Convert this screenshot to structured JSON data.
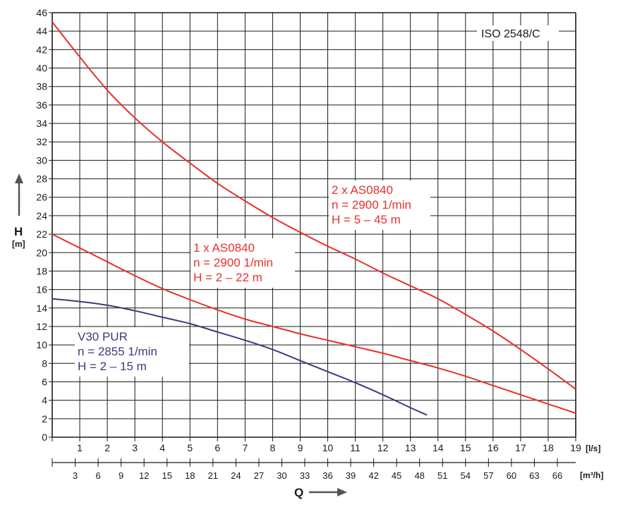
{
  "chart_data": {
    "type": "line",
    "standard_label": "ISO 2548/C",
    "y_axis": {
      "label": "H",
      "unit": "[m]",
      "ticks": [
        "0",
        "2",
        "4",
        "6",
        "8",
        "10",
        "12",
        "14",
        "16",
        "18",
        "20",
        "22",
        "24",
        "26",
        "28",
        "30",
        "32",
        "34",
        "36",
        "38",
        "40",
        "42",
        "44",
        "46"
      ],
      "ylim": [
        0,
        46
      ]
    },
    "x_axis_primary": {
      "label": "Q",
      "unit": "[l/s]",
      "ticks": [
        "1",
        "2",
        "3",
        "4",
        "5",
        "6",
        "7",
        "8",
        "9",
        "10",
        "11",
        "12",
        "13",
        "14",
        "15",
        "16",
        "17",
        "18",
        "19"
      ],
      "xlim": [
        0,
        19
      ]
    },
    "x_axis_secondary": {
      "unit": "[m³/h]",
      "ticks": [
        "3",
        "6",
        "9",
        "12",
        "15",
        "18",
        "21",
        "24",
        "27",
        "30",
        "33",
        "36",
        "39",
        "42",
        "45",
        "48",
        "51",
        "54",
        "57",
        "60",
        "63",
        "66"
      ]
    },
    "grid": true,
    "series": [
      {
        "name": "2 x AS0840",
        "color": "#e8302c",
        "annotation": [
          "2 x AS0840",
          "n = 2900 1/min",
          "H = 5 – 45 m"
        ],
        "x": [
          0,
          1,
          2,
          3,
          4,
          5,
          6,
          7,
          8,
          9,
          10,
          11,
          12,
          13,
          14,
          15,
          16,
          17,
          18,
          19
        ],
        "y": [
          45,
          41.2,
          37.6,
          34.6,
          32,
          29.7,
          27.5,
          25.6,
          23.8,
          22.2,
          20.7,
          19.3,
          17.8,
          16.4,
          15,
          13.3,
          11.5,
          9.5,
          7.4,
          5.2
        ]
      },
      {
        "name": "1 x AS0840",
        "color": "#e8302c",
        "annotation": [
          "1 x AS0840",
          "n = 2900 1/min",
          "H = 2 – 22 m"
        ],
        "x": [
          0,
          1,
          2,
          3,
          4,
          5,
          6,
          7,
          8,
          9,
          10,
          11,
          12,
          13,
          14,
          15,
          16,
          17,
          18,
          19
        ],
        "y": [
          22,
          20.5,
          19,
          17.5,
          16.1,
          14.9,
          13.8,
          12.8,
          12,
          11.2,
          10.5,
          9.8,
          9.1,
          8.3,
          7.5,
          6.6,
          5.6,
          4.6,
          3.6,
          2.6
        ]
      },
      {
        "name": "V30 PUR",
        "color": "#3f3a7a",
        "annotation": [
          "V30 PUR",
          "n = 2855 1/min",
          "H = 2 – 15 m"
        ],
        "x": [
          0,
          1,
          2,
          3,
          4,
          5,
          6,
          7,
          8,
          9,
          10,
          11,
          12,
          13,
          13.6
        ],
        "y": [
          15,
          14.7,
          14.3,
          13.7,
          13,
          12.3,
          11.4,
          10.5,
          9.5,
          8.3,
          7.1,
          5.9,
          4.6,
          3.2,
          2.4
        ]
      }
    ]
  }
}
